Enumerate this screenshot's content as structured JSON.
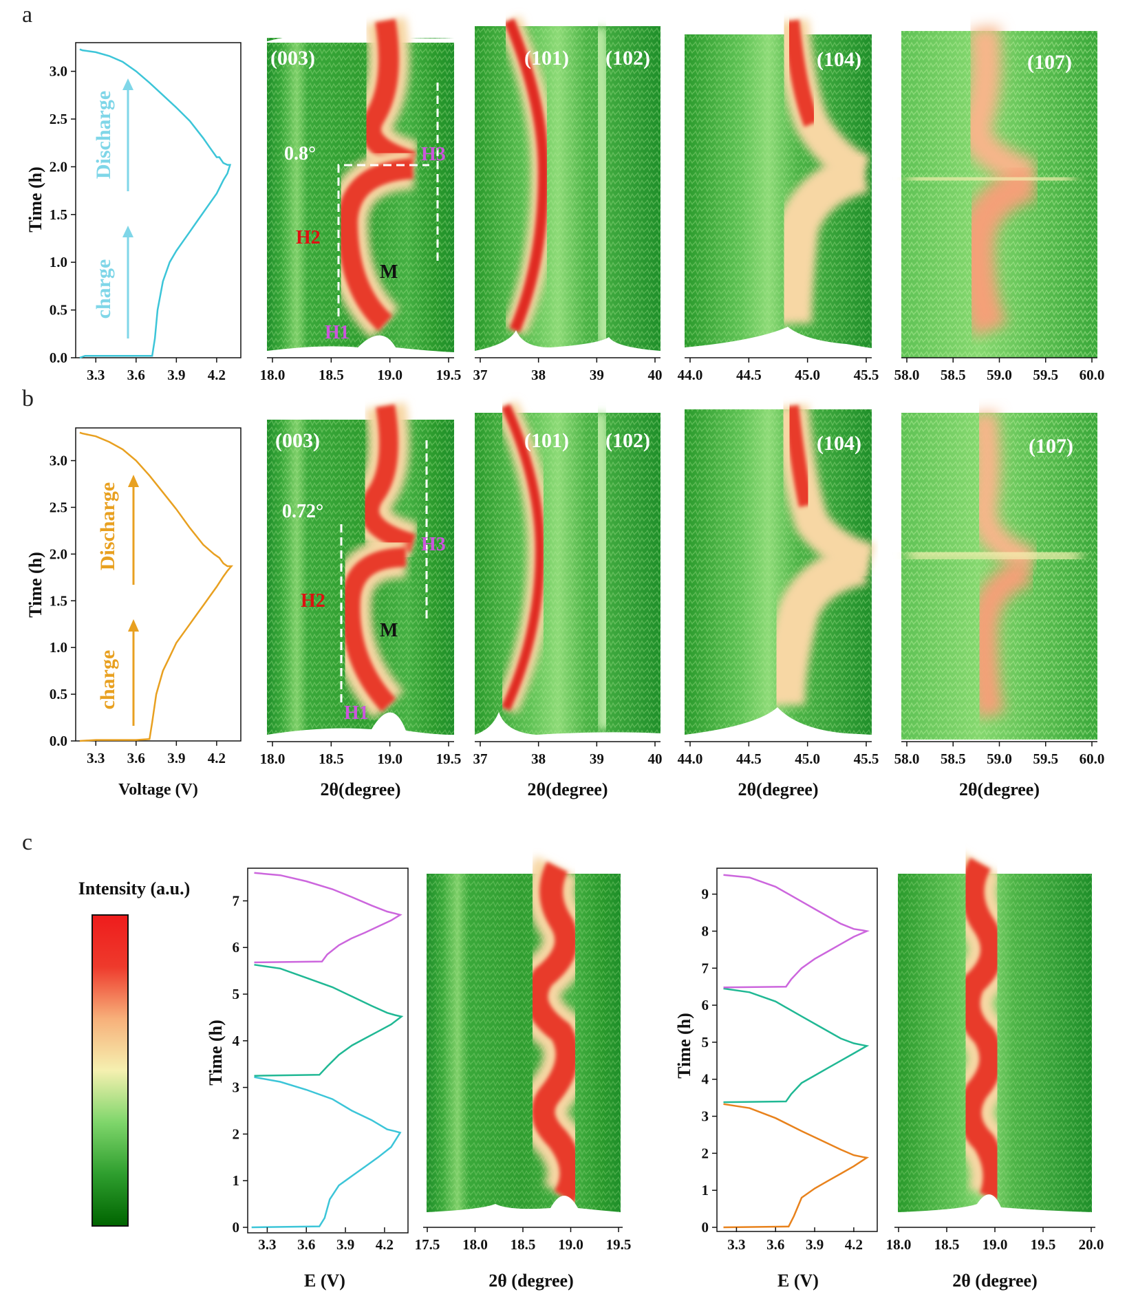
{
  "panels": [
    {
      "letter": "a",
      "voltage_color": "#3cc5d8",
      "curve_x": [
        3.18,
        3.18,
        3.22,
        3.5,
        3.72,
        3.74,
        3.76,
        3.8,
        3.85,
        3.9,
        3.95,
        4.0,
        4.05,
        4.1,
        4.15,
        4.2,
        4.25,
        4.28,
        4.3,
        4.28,
        4.25,
        4.22,
        4.2,
        4.15,
        4.1,
        4.0,
        3.9,
        3.8,
        3.7,
        3.6,
        3.5,
        3.4,
        3.3,
        3.2,
        3.18
      ],
      "curve_t": [
        0.0,
        0.0,
        0.02,
        0.02,
        0.02,
        0.2,
        0.5,
        0.8,
        1.0,
        1.12,
        1.22,
        1.32,
        1.42,
        1.52,
        1.62,
        1.72,
        1.86,
        1.93,
        2.02,
        2.02,
        2.04,
        2.1,
        2.1,
        2.2,
        2.3,
        2.48,
        2.62,
        2.75,
        2.88,
        3.0,
        3.1,
        3.16,
        3.2,
        3.22,
        3.23
      ],
      "arrow_top_label": "Discharge",
      "arrow_bottom_label": "charge",
      "ylabel": "Time (h)",
      "yticks": [
        "0.0",
        "0.5",
        "1.0",
        "1.5",
        "2.0",
        "2.5",
        "3.0"
      ],
      "xticks": [
        "3.3",
        "3.6",
        "3.9",
        "4.2"
      ],
      "xlabel": "",
      "maps": [
        {
          "peak": "(003)",
          "xticks": [
            "18.0",
            "18.5",
            "19.0",
            "19.5"
          ],
          "xlabel": ""
        },
        {
          "peak": "(101)",
          "peak2": "(102)",
          "xticks": [
            "37",
            "38",
            "39",
            "40"
          ],
          "xlabel": ""
        },
        {
          "peak": "(104)",
          "xticks": [
            "44.0",
            "44.5",
            "45.0",
            "45.5"
          ],
          "xlabel": ""
        },
        {
          "peak": "(107)",
          "xticks": [
            "58.0",
            "58.5",
            "59.0",
            "59.5",
            "60.0"
          ],
          "xlabel": ""
        }
      ],
      "annotations": {
        "angle": "0.8°",
        "h1": "H1",
        "h2": "H2",
        "h3": "H3",
        "m": "M"
      }
    },
    {
      "letter": "b",
      "voltage_color": "#e8a020",
      "curve_x": [
        3.18,
        3.18,
        3.3,
        3.6,
        3.7,
        3.72,
        3.75,
        3.8,
        3.85,
        3.9,
        3.95,
        4.0,
        4.05,
        4.1,
        4.15,
        4.2,
        4.25,
        4.28,
        4.31,
        4.28,
        4.25,
        4.22,
        4.18,
        4.1,
        4.0,
        3.9,
        3.8,
        3.7,
        3.6,
        3.5,
        3.4,
        3.3,
        3.2,
        3.18
      ],
      "curve_t": [
        0.0,
        0.0,
        0.01,
        0.01,
        0.02,
        0.2,
        0.5,
        0.75,
        0.9,
        1.05,
        1.15,
        1.25,
        1.35,
        1.45,
        1.55,
        1.65,
        1.76,
        1.82,
        1.87,
        1.87,
        1.9,
        1.96,
        2.0,
        2.1,
        2.28,
        2.48,
        2.66,
        2.84,
        3.0,
        3.12,
        3.2,
        3.26,
        3.29,
        3.3
      ],
      "arrow_top_label": "Discharge",
      "arrow_bottom_label": "charge",
      "ylabel": "Time (h)",
      "yticks": [
        "0.0",
        "0.5",
        "1.0",
        "1.5",
        "2.0",
        "2.5",
        "3.0"
      ],
      "xticks": [
        "3.3",
        "3.6",
        "3.9",
        "4.2"
      ],
      "xlabel": "Voltage (V)",
      "maps": [
        {
          "peak": "(003)",
          "xticks": [
            "18.0",
            "18.5",
            "19.0",
            "19.5"
          ],
          "xlabel": "2θ(degree)"
        },
        {
          "peak": "(101)",
          "peak2": "(102)",
          "xticks": [
            "37",
            "38",
            "39",
            "40"
          ],
          "xlabel": "2θ(degree)"
        },
        {
          "peak": "(104)",
          "xticks": [
            "44.0",
            "44.5",
            "45.0",
            "45.5"
          ],
          "xlabel": "2θ(degree)"
        },
        {
          "peak": "(107)",
          "xticks": [
            "58.0",
            "58.5",
            "59.0",
            "59.5",
            "60.0"
          ],
          "xlabel": "2θ(degree)"
        }
      ],
      "annotations": {
        "angle": "0.72°",
        "h1": "H1",
        "h2": "H2",
        "h3": "H3",
        "m": "M"
      }
    }
  ],
  "panel_c": {
    "letter": "c",
    "colorbar_label": "Intensity (a.u.)",
    "colorbar_colors": [
      "#006400",
      "#2e9e2e",
      "#7fd66b",
      "#f5f0b0",
      "#f7b07a",
      "#ee3a2c",
      "#ee1c1c"
    ],
    "left": {
      "ylabel": "Time (h)",
      "yticks": [
        "0",
        "1",
        "2",
        "3",
        "4",
        "5",
        "6",
        "7"
      ],
      "xticks": [
        "3.3",
        "3.6",
        "3.9",
        "4.2"
      ],
      "xlabel": "E (V)",
      "map_xticks": [
        "17.5",
        "18.0",
        "18.5",
        "19.0",
        "19.5"
      ],
      "map_xlabel": "2θ (degree)",
      "cycles": [
        {
          "color": "#3cc5d8",
          "x": [
            3.18,
            3.7,
            3.74,
            3.78,
            3.85,
            3.95,
            4.05,
            4.15,
            4.25,
            4.32,
            4.28,
            4.22,
            4.1,
            3.95,
            3.8,
            3.6,
            3.4,
            3.2
          ],
          "t": [
            0.0,
            0.02,
            0.2,
            0.6,
            0.9,
            1.1,
            1.3,
            1.5,
            1.72,
            2.03,
            2.06,
            2.1,
            2.3,
            2.5,
            2.75,
            2.95,
            3.12,
            3.22
          ]
        },
        {
          "color": "#20b894",
          "x": [
            3.2,
            3.7,
            3.76,
            3.85,
            3.95,
            4.05,
            4.15,
            4.25,
            4.33,
            4.28,
            4.22,
            4.1,
            3.95,
            3.8,
            3.6,
            3.4,
            3.2
          ],
          "t": [
            3.25,
            3.27,
            3.45,
            3.7,
            3.9,
            4.05,
            4.2,
            4.35,
            4.52,
            4.55,
            4.6,
            4.75,
            4.95,
            5.15,
            5.35,
            5.55,
            5.63
          ]
        },
        {
          "color": "#cc66dd",
          "x": [
            3.2,
            3.72,
            3.76,
            3.85,
            3.95,
            4.05,
            4.15,
            4.25,
            4.32,
            4.28,
            4.22,
            4.1,
            3.95,
            3.8,
            3.6,
            3.4,
            3.2
          ],
          "t": [
            5.68,
            5.7,
            5.85,
            6.05,
            6.2,
            6.32,
            6.45,
            6.58,
            6.7,
            6.73,
            6.77,
            6.9,
            7.08,
            7.25,
            7.42,
            7.55,
            7.6
          ]
        }
      ]
    },
    "right": {
      "ylabel": "Time (h)",
      "yticks": [
        "0",
        "1",
        "2",
        "3",
        "4",
        "5",
        "6",
        "7",
        "8",
        "9"
      ],
      "xticks": [
        "3.3",
        "3.6",
        "3.9",
        "4.2"
      ],
      "xlabel": "E (V)",
      "map_xticks": [
        "18.0",
        "18.5",
        "19.0",
        "19.5",
        "20.0"
      ],
      "map_xlabel": "2θ (degree)",
      "cycles": [
        {
          "color": "#e8821c",
          "x": [
            3.2,
            3.7,
            3.74,
            3.8,
            3.9,
            4.0,
            4.1,
            4.2,
            4.3,
            4.27,
            4.2,
            4.1,
            3.95,
            3.8,
            3.6,
            3.4,
            3.2
          ],
          "t": [
            0.0,
            0.02,
            0.3,
            0.8,
            1.05,
            1.25,
            1.45,
            1.65,
            1.88,
            1.9,
            1.95,
            2.1,
            2.35,
            2.6,
            2.95,
            3.22,
            3.33
          ]
        },
        {
          "color": "#20b894",
          "x": [
            3.2,
            3.68,
            3.72,
            3.8,
            3.9,
            4.0,
            4.1,
            4.2,
            4.3,
            4.27,
            4.2,
            4.1,
            3.95,
            3.8,
            3.6,
            3.4,
            3.2
          ],
          "t": [
            3.38,
            3.4,
            3.6,
            3.9,
            4.1,
            4.3,
            4.5,
            4.7,
            4.9,
            4.92,
            4.97,
            5.1,
            5.4,
            5.7,
            6.1,
            6.35,
            6.45
          ]
        },
        {
          "color": "#cc66dd",
          "x": [
            3.2,
            3.68,
            3.72,
            3.8,
            3.9,
            4.0,
            4.1,
            4.2,
            4.3,
            4.27,
            4.2,
            4.1,
            3.95,
            3.8,
            3.6,
            3.4,
            3.2
          ],
          "t": [
            6.48,
            6.5,
            6.7,
            7.0,
            7.25,
            7.45,
            7.65,
            7.85,
            8.0,
            8.02,
            8.06,
            8.2,
            8.5,
            8.8,
            9.2,
            9.45,
            9.52
          ]
        }
      ]
    }
  },
  "chart_data": [
    {
      "type": "line",
      "title": "",
      "xlabel": "",
      "ylabel": "Time (h)",
      "xlim": [
        3.15,
        4.38
      ],
      "ylim": [
        0,
        3.3
      ],
      "series": [
        {
          "x": [
            3.18,
            3.72,
            3.85,
            4.0,
            4.15,
            4.3,
            4.2,
            4.0,
            3.8,
            3.6,
            3.3,
            3.18
          ],
          "y": [
            0.0,
            0.02,
            1.0,
            1.32,
            1.62,
            2.02,
            2.1,
            2.48,
            2.75,
            3.0,
            3.2,
            3.23
          ]
        }
      ]
    },
    {
      "type": "line",
      "title": "",
      "xlabel": "Voltage (V)",
      "ylabel": "Time (h)",
      "xlim": [
        3.15,
        4.38
      ],
      "ylim": [
        0,
        3.35
      ],
      "series": [
        {
          "x": [
            3.18,
            3.7,
            3.85,
            4.0,
            4.15,
            4.31,
            4.18,
            4.0,
            3.8,
            3.6,
            3.3,
            3.18
          ],
          "y": [
            0.0,
            0.02,
            0.9,
            1.25,
            1.55,
            1.87,
            2.0,
            2.28,
            2.66,
            3.0,
            3.26,
            3.3
          ]
        }
      ]
    },
    {
      "type": "heatmap",
      "xlabel": "2θ(degree)",
      "ylabel": "Time (h)",
      "x_range": [
        18.0,
        19.5
      ],
      "peaks": [
        "(003)"
      ]
    },
    {
      "type": "heatmap",
      "xlabel": "2θ(degree)",
      "ylabel": "Time (h)",
      "x_range": [
        36.7,
        40.0
      ],
      "peaks": [
        "(101)",
        "(102)"
      ]
    },
    {
      "type": "heatmap",
      "xlabel": "2θ(degree)",
      "ylabel": "Time (h)",
      "x_range": [
        43.9,
        45.7
      ],
      "peaks": [
        "(104)"
      ]
    },
    {
      "type": "heatmap",
      "xlabel": "2θ(degree)",
      "ylabel": "Time (h)",
      "x_range": [
        58.0,
        60.2
      ],
      "peaks": [
        "(107)"
      ]
    }
  ]
}
